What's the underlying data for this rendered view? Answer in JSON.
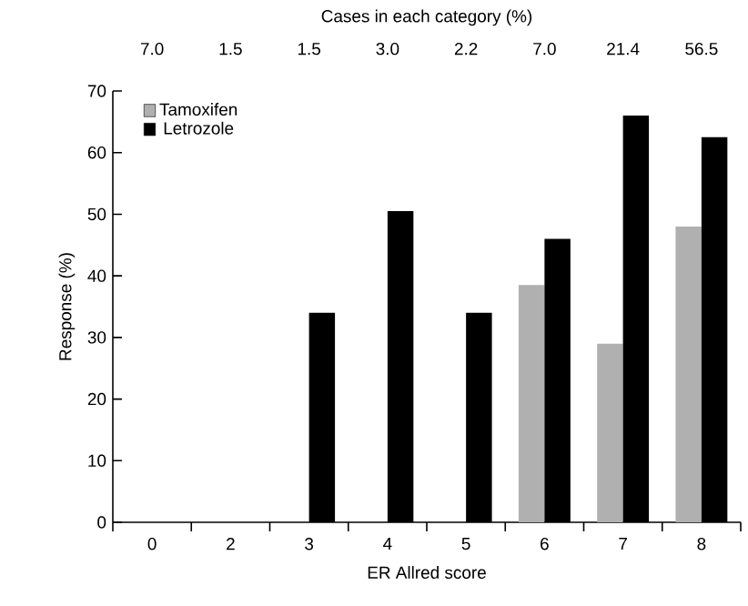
{
  "chart_data": {
    "type": "bar",
    "title": "Cases in each category (%)",
    "xlabel": "ER Allred score",
    "ylabel": "Response (%)",
    "categories": [
      "0",
      "2",
      "3",
      "4",
      "5",
      "6",
      "7",
      "8"
    ],
    "series": [
      {
        "name": "Tamoxifen",
        "color": "#b0b0b0",
        "values": [
          0,
          0,
          0,
          0,
          0,
          38.5,
          29,
          48
        ]
      },
      {
        "name": "Letrozole",
        "color": "#000000",
        "values": [
          0,
          0,
          34,
          50.5,
          34,
          46,
          66,
          62.5
        ]
      }
    ],
    "annotations": [
      "7.0",
      "1.5",
      "1.5",
      "3.0",
      "2.2",
      "7.0",
      "21.4",
      "56.5"
    ],
    "ylim": [
      0,
      70
    ],
    "yticks": [
      0,
      10,
      20,
      30,
      40,
      50,
      60,
      70
    ],
    "legend": "top left",
    "grid": false
  }
}
